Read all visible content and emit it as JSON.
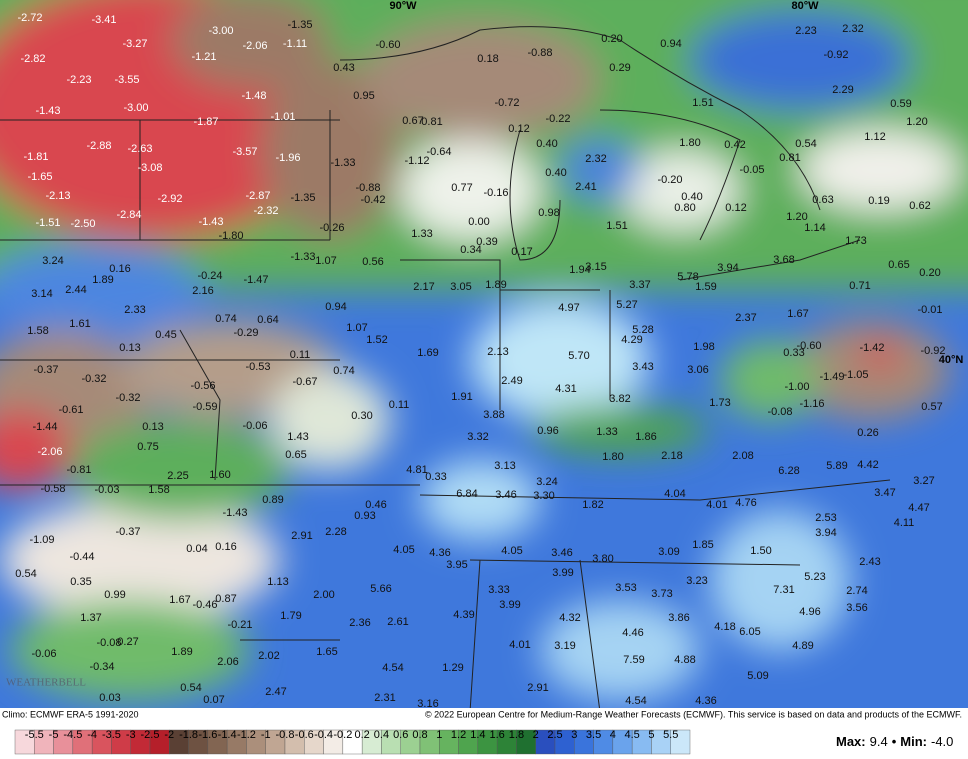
{
  "map": {
    "lon_labels": [
      "90°W",
      "80°W"
    ],
    "lat_labels": [
      "40°N"
    ],
    "logo": "WEATHERBELL",
    "labels": [
      "-2.72",
      "-3.41",
      "-3.00",
      "-2.06",
      "-1.11",
      "-1.35",
      "-3.27",
      "-2.82",
      "-1.21",
      "-2.23",
      "-3.55",
      "-1.48",
      "-1.43",
      "-3.00",
      "-1.87",
      "-1.01",
      "-2.88",
      "-2.63",
      "-3.57",
      "-1.96",
      "-1.33",
      "-1.81",
      "-1.65",
      "-3.08",
      "-2.13",
      "-2.92",
      "-2.87",
      "-1.35",
      "-2.84",
      "-2.32",
      "-1.51",
      "-2.50",
      "-1.43",
      "-1.80",
      "-0.26",
      "-0.88",
      "-0.42",
      "0.43",
      "0.95",
      "-0.60",
      "0.18",
      "-0.88",
      "0.20",
      "0.94",
      "2.23",
      "2.32",
      "-0.92",
      "0.29",
      "-0.72",
      "1.51",
      "2.29",
      "0.59",
      "1.20",
      "1.12",
      "0.67",
      "0.81",
      "0.12",
      "-0.22",
      "-0.64",
      "-1.12",
      "0.40",
      "2.32",
      "1.80",
      "0.42",
      "-0.05",
      "0.81",
      "0.54",
      "2.41",
      "0.40",
      "0.77",
      "-0.16",
      "-0.20",
      "0.40",
      "0.80",
      "0.12",
      "0.63",
      "0.19",
      "0.62",
      "0.98",
      "1.51",
      "1.20",
      "1.14",
      "1.73",
      "0.00",
      "0.34",
      "0.39",
      "0.17",
      "1.33",
      "3.24",
      "0.16",
      "-0.24",
      "-1.47",
      "-1.33",
      "1.07",
      "0.56",
      "1.89",
      "3.14",
      "2.44",
      "2.16",
      "2.33",
      "0.94",
      "1.94",
      "3.15",
      "5.78",
      "3.94",
      "3.68",
      "0.65",
      "0.20",
      "0.71",
      "2.17",
      "3.05",
      "1.89",
      "3.37",
      "1.59",
      "4.97",
      "5.27",
      "1.61",
      "0.74",
      "0.64",
      "1.58",
      "0.45",
      "-0.29",
      "1.07",
      "1.52",
      "2.37",
      "1.67",
      "-0.01",
      "4.29",
      "5.28",
      "0.13",
      "1.69",
      "2.13",
      "5.70",
      "1.98",
      "0.33",
      "-0.60",
      "-1.42",
      "-0.92",
      "-0.37",
      "-0.53",
      "0.11",
      "-0.67",
      "0.74",
      "3.43",
      "3.06",
      "-0.32",
      "-0.56",
      "2.49",
      "4.31",
      "-1.00",
      "-1.49",
      "-1.05",
      "-0.32",
      "-0.59",
      "0.11",
      "1.91",
      "3.82",
      "1.73",
      "-1.16",
      "0.57",
      "-0.08",
      "-0.61",
      "0.30",
      "3.88",
      "-1.44",
      "0.13",
      "-0.06",
      "0.96",
      "1.33",
      "1.86",
      "1.43",
      "3.32",
      "0.26",
      "0.75",
      "-2.06",
      "0.65",
      "1.80",
      "2.18",
      "2.08",
      "6.28",
      "5.89",
      "4.42",
      "-0.81",
      "4.81",
      "0.33",
      "3.13",
      "3.24",
      "2.25",
      "1.60",
      "-0.58",
      "-0.03",
      "1.58",
      "6.84",
      "3.46",
      "3.30",
      "4.04",
      "3.47",
      "3.27",
      "0.89",
      "0.46",
      "0.93",
      "1.82",
      "4.01",
      "4.76",
      "4.47",
      "-0.37",
      "-1.43",
      "2.53",
      "4.11",
      "2.28",
      "2.91",
      "3.94",
      "-1.09",
      "0.04",
      "0.16",
      "4.05",
      "4.36",
      "4.05",
      "3.46",
      "3.80",
      "3.09",
      "1.85",
      "1.50",
      "-0.44",
      "3.95",
      "2.43",
      "0.54",
      "3.99",
      "5.23",
      "0.35",
      "1.13",
      "3.23",
      "3.53",
      "3.73",
      "7.31",
      "2.74",
      "0.99",
      "3.33",
      "5.66",
      "1.67",
      "-0.46",
      "0.87",
      "2.00",
      "3.99",
      "4.96",
      "3.56",
      "1.37",
      "1.79",
      "4.39",
      "4.32",
      "3.86",
      "-0.21",
      "2.36",
      "2.61",
      "4.18",
      "6.05",
      "-0.08",
      "0.27",
      "4.46",
      "4.01",
      "3.19",
      "4.89",
      "-0.06",
      "1.89",
      "2.06",
      "2.02",
      "1.65",
      "-0.34",
      "4.54",
      "1.29",
      "7.59",
      "4.88",
      "0.54",
      "2.91",
      "5.09",
      "0.03",
      "0.07",
      "2.47",
      "2.31",
      "3.16",
      "4.54",
      "4.36"
    ]
  },
  "footer": {
    "climo": "Climo: ECMWF ERA-5 1991-2020",
    "copyright": "© 2022 European Centre for Medium-Range Weather Forecasts (ECMWF). This service is based on data and products of the ECMWF.",
    "max_label": "Max:",
    "max": "9.4",
    "separator": "•",
    "min_label": "Min:",
    "min": "-4.0"
  },
  "legend": {
    "ticks": [
      "-5.5",
      "-5",
      "-4.5",
      "-4",
      "-3.5",
      "-3",
      "-2.5",
      "-2",
      "-1.8",
      "-1.6",
      "-1.4",
      "-1.2",
      "-1",
      "-0.8",
      "-0.6",
      "-0.4",
      "-0.2",
      "0.2",
      "0.4",
      "0.6",
      "0.8",
      "1",
      "1.2",
      "1.4",
      "1.6",
      "1.8",
      "2",
      "2.5",
      "3",
      "3.5",
      "4",
      "4.5",
      "5",
      "5.5"
    ],
    "colors": [
      "#f7d8dc",
      "#f0b4bb",
      "#e8909a",
      "#e07079",
      "#d9545e",
      "#cf3c48",
      "#c22a36",
      "#b51f2a",
      "#5a4034",
      "#6e5242",
      "#826552",
      "#977a66",
      "#ab8f7b",
      "#c0a693",
      "#d3bead",
      "#e6d7cb",
      "#f3ece6",
      "#ffffff",
      "#d7ecd3",
      "#b9dfb2",
      "#9cd092",
      "#80c176",
      "#66b35f",
      "#4fa44e",
      "#3c9441",
      "#2d8337",
      "#1f7030",
      "#2a4fbe",
      "#2e61d1",
      "#3a74dc",
      "#4f8be5",
      "#6aa3ec",
      "#88bbf2",
      "#a9d2f6",
      "#cbe7f9"
    ]
  }
}
